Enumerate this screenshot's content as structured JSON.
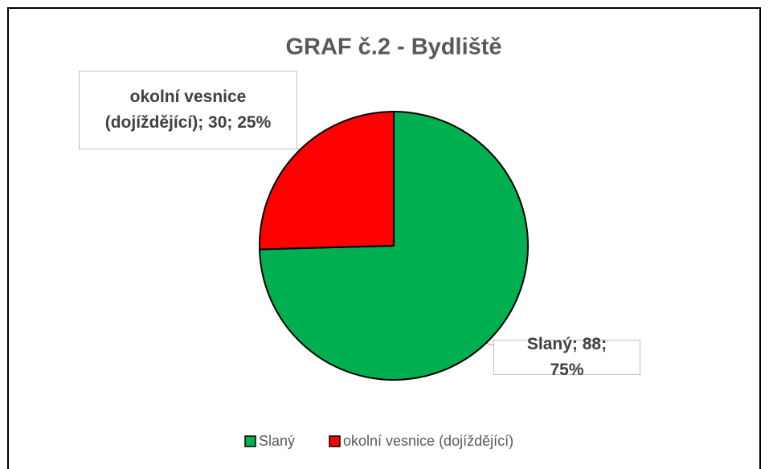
{
  "chart_data": {
    "type": "pie",
    "title": "GRAF č.2 - Bydliště",
    "categories": [
      "Slaný",
      "okolní vesnice (dojíždějící)"
    ],
    "values": [
      88,
      30
    ],
    "value_labels": [
      "Slaný; 88; 75%",
      "okolní vesnice (dojíždějící); 30; 25%"
    ],
    "colors": [
      "#00b050",
      "#ff0000"
    ],
    "legend": "bottom"
  }
}
